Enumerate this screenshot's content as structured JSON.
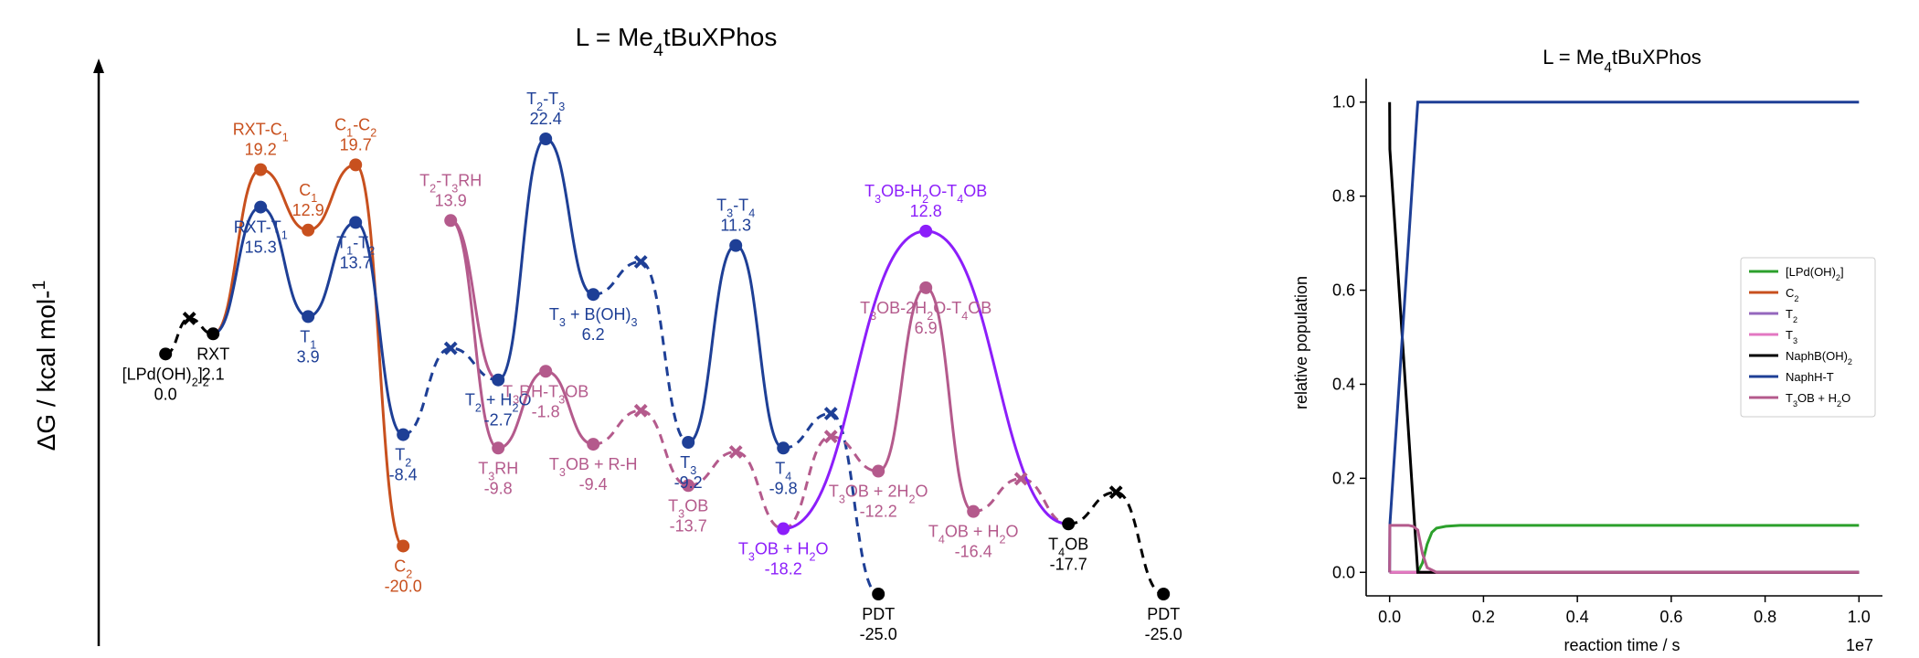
{
  "colors": {
    "orange": "#c8501e",
    "blue": "#1e3f96",
    "pink": "#b45a8c",
    "purple": "#8c1efa",
    "black": "#000000",
    "green": "#2ca02c",
    "lightpurple": "#9467bd",
    "lightpink": "#e377c2"
  },
  "chart_data": [
    {
      "type": "energy-profile",
      "title": "L = Me4tBuXPhos",
      "ylabel": "ΔG / kcal mol⁻¹",
      "ylim": [
        -25.0,
        22.4
      ],
      "xlim": [
        0,
        22.5
      ],
      "states": [
        {
          "id": "LPd",
          "label": "[LPd(OH)2]2",
          "value": 0.0,
          "x": 0.6,
          "color": "black",
          "kind": "min"
        },
        {
          "id": "X1",
          "label": "",
          "value": 3.7,
          "x": 1.1,
          "color": "black",
          "kind": "ts-cross"
        },
        {
          "id": "RXT",
          "label": "RXT",
          "value": 2.1,
          "x": 1.6,
          "color": "black",
          "kind": "min"
        },
        {
          "id": "RXT-C1",
          "label": "RXT-C1",
          "value": 19.2,
          "x": 2.6,
          "color": "orange",
          "kind": "min"
        },
        {
          "id": "C1",
          "label": "C1",
          "value": 12.9,
          "x": 3.6,
          "color": "orange",
          "kind": "min"
        },
        {
          "id": "C1-C2",
          "label": "C1-C2",
          "value": 19.7,
          "x": 4.6,
          "color": "orange",
          "kind": "min"
        },
        {
          "id": "C2",
          "label": "C2",
          "value": -20.0,
          "x": 5.6,
          "color": "orange",
          "kind": "min"
        },
        {
          "id": "RXT-T1",
          "label": "RXT-T1",
          "value": 15.3,
          "x": 2.6,
          "color": "blue",
          "kind": "min"
        },
        {
          "id": "T1",
          "label": "T1",
          "value": 3.9,
          "x": 3.6,
          "color": "blue",
          "kind": "min"
        },
        {
          "id": "T1-T2",
          "label": "T1-T2",
          "value": 13.7,
          "x": 4.6,
          "color": "blue",
          "kind": "min"
        },
        {
          "id": "T2",
          "label": "T2",
          "value": -8.4,
          "x": 5.6,
          "color": "blue",
          "kind": "min"
        },
        {
          "id": "X2",
          "label": "",
          "value": 0.6,
          "x": 6.6,
          "color": "blue",
          "kind": "ts-cross"
        },
        {
          "id": "T2H2O",
          "label": "T2 + H2O",
          "value": -2.7,
          "x": 7.6,
          "color": "blue",
          "kind": "min"
        },
        {
          "id": "T2-T3",
          "label": "T2-T3",
          "value": 22.4,
          "x": 8.6,
          "color": "blue",
          "kind": "min"
        },
        {
          "id": "T3BOH3",
          "label": "T3 + B(OH)3",
          "value": 6.2,
          "x": 9.6,
          "color": "blue",
          "kind": "min"
        },
        {
          "id": "X3",
          "label": "",
          "value": 9.6,
          "x": 10.6,
          "color": "blue",
          "kind": "ts-cross"
        },
        {
          "id": "T3",
          "label": "T3",
          "value": -9.2,
          "x": 11.6,
          "color": "blue",
          "kind": "min"
        },
        {
          "id": "T3-T4",
          "label": "T3-T4",
          "value": 11.3,
          "x": 12.6,
          "color": "blue",
          "kind": "min"
        },
        {
          "id": "T4",
          "label": "T4",
          "value": -9.8,
          "x": 13.6,
          "color": "blue",
          "kind": "min"
        },
        {
          "id": "X4",
          "label": "",
          "value": -6.2,
          "x": 14.6,
          "color": "blue",
          "kind": "ts-cross"
        },
        {
          "id": "PDT1",
          "label": "PDT",
          "value": -25.0,
          "x": 15.6,
          "color": "black",
          "kind": "min"
        },
        {
          "id": "T2-T3RH",
          "label": "T2-T3RH",
          "value": 13.9,
          "x": 6.6,
          "color": "pink",
          "kind": "min"
        },
        {
          "id": "T3RH",
          "label": "T3RH",
          "value": -9.8,
          "x": 7.6,
          "color": "pink",
          "kind": "min"
        },
        {
          "id": "T3RH-T3OB",
          "label": "T3RH-T3OB",
          "value": -1.8,
          "x": 8.6,
          "color": "pink",
          "kind": "min"
        },
        {
          "id": "T3OBRH",
          "label": "T3OB + R-H",
          "value": -9.4,
          "x": 9.6,
          "color": "pink",
          "kind": "min"
        },
        {
          "id": "X5",
          "label": "",
          "value": -5.9,
          "x": 10.6,
          "color": "pink",
          "kind": "ts-cross"
        },
        {
          "id": "T3OB",
          "label": "T3OB",
          "value": -13.7,
          "x": 11.6,
          "color": "pink",
          "kind": "min"
        },
        {
          "id": "X6",
          "label": "",
          "value": -10.2,
          "x": 12.6,
          "color": "pink",
          "kind": "ts-cross"
        },
        {
          "id": "T3OBH2O",
          "label": "T3OB + H2O",
          "value": -18.2,
          "x": 13.6,
          "color": "purple",
          "kind": "min"
        },
        {
          "id": "X7",
          "label": "",
          "value": -8.6,
          "x": 14.6,
          "color": "pink",
          "kind": "ts-cross"
        },
        {
          "id": "T3OB2H2O",
          "label": "T3OB + 2H2O",
          "value": -12.2,
          "x": 15.6,
          "color": "pink",
          "kind": "min"
        },
        {
          "id": "T3OB-2H2O-T4OB",
          "label": "T3OB-2H2O-T4OB",
          "value": 6.9,
          "x": 16.6,
          "color": "pink",
          "kind": "min"
        },
        {
          "id": "T4OBH2O",
          "label": "T4OB + H2O",
          "value": -16.4,
          "x": 17.6,
          "color": "pink",
          "kind": "min"
        },
        {
          "id": "X8",
          "label": "",
          "value": -13.0,
          "x": 18.6,
          "color": "pink",
          "kind": "ts-cross"
        },
        {
          "id": "T3OB-H2O-T4OB",
          "label": "T3OB-H2O-T4OB",
          "value": 12.8,
          "x": 16.6,
          "color": "purple",
          "kind": "min"
        },
        {
          "id": "T4OB",
          "label": "T4OB",
          "value": -17.7,
          "x": 19.6,
          "color": "black",
          "kind": "min"
        },
        {
          "id": "X9",
          "label": "",
          "value": -14.4,
          "x": 20.6,
          "color": "black",
          "kind": "ts-cross"
        },
        {
          "id": "PDT2",
          "label": "PDT",
          "value": -25.0,
          "x": 21.6,
          "color": "black",
          "kind": "min"
        }
      ],
      "segments": [
        {
          "from": "LPd",
          "to": "X1",
          "color": "black",
          "dashed": true
        },
        {
          "from": "X1",
          "to": "RXT",
          "color": "black",
          "dashed": true
        },
        {
          "path": [
            "RXT",
            "RXT-C1",
            "C1",
            "C1-C2",
            "C2"
          ],
          "color": "orange",
          "dashed": false
        },
        {
          "path": [
            "RXT",
            "RXT-T1",
            "T1",
            "T1-T2",
            "T2"
          ],
          "color": "blue",
          "dashed": false
        },
        {
          "path": [
            "T2",
            "X2",
            "T2H2O"
          ],
          "color": "blue",
          "dashed": true
        },
        {
          "path": [
            "T2H2O",
            "T2-T3",
            "T3BOH3"
          ],
          "color": "blue",
          "dashed": false
        },
        {
          "path": [
            "T3BOH3",
            "X3",
            "T3"
          ],
          "color": "blue",
          "dashed": true
        },
        {
          "path": [
            "T3",
            "T3-T4",
            "T4"
          ],
          "color": "blue",
          "dashed": false
        },
        {
          "path": [
            "T4",
            "X4",
            "PDT1"
          ],
          "color": "blue",
          "dashed": true
        },
        {
          "path": [
            "T2H2O",
            "T2-T3RH",
            "T3RH",
            "T3RH-T3OB",
            "T3OBRH"
          ],
          "color": "pink",
          "dashed": false
        },
        {
          "path": [
            "T3OBRH",
            "X5",
            "T3OB",
            "X6",
            "T3OBH2O"
          ],
          "color": "pink",
          "dashed": true
        },
        {
          "path": [
            "T3OBH2O",
            "X7",
            "T3OB2H2O"
          ],
          "color": "pink",
          "dashed": true
        },
        {
          "path": [
            "T3OB2H2O",
            "T3OB-2H2O-T4OB",
            "T4OBH2O"
          ],
          "color": "pink",
          "dashed": false
        },
        {
          "path": [
            "T4OBH2O",
            "X8",
            "T4OB"
          ],
          "color": "pink",
          "dashed": true
        },
        {
          "path": [
            "T3OBH2O",
            "T3OB-H2O-T4OB",
            "T4OB"
          ],
          "color": "purple",
          "dashed": false
        },
        {
          "path": [
            "T4OB",
            "X9",
            "PDT2"
          ],
          "color": "black",
          "dashed": true
        }
      ]
    },
    {
      "type": "line",
      "title": "L = Me4tBuXPhos",
      "xlabel": "reaction time / s",
      "ylabel": "relative population",
      "x_multiplier": "1e7",
      "xlim": [
        -0.05,
        1.05
      ],
      "ylim": [
        -0.05,
        1.05
      ],
      "xticks": [
        "0.0",
        "0.2",
        "0.4",
        "0.6",
        "0.8",
        "1.0"
      ],
      "yticks": [
        "0.0",
        "0.2",
        "0.4",
        "0.6",
        "0.8",
        "1.0"
      ],
      "legend_position": "center-right",
      "series": [
        {
          "name": "[LPd(OH)2]",
          "color": "green",
          "x": [
            0.0,
            0.06,
            0.07,
            0.08,
            0.09,
            0.1,
            0.12,
            0.15,
            0.2,
            0.4,
            0.6,
            0.8,
            1.0
          ],
          "y": [
            0.0,
            0.0,
            0.02,
            0.06,
            0.085,
            0.094,
            0.098,
            0.1,
            0.1,
            0.1,
            0.1,
            0.1,
            0.1
          ]
        },
        {
          "name": "C2",
          "color": "orange",
          "x": [
            0.0,
            1.0
          ],
          "y": [
            0.0,
            0.0
          ]
        },
        {
          "name": "T2",
          "color": "lightpurple",
          "x": [
            0.0,
            1.0
          ],
          "y": [
            0.0,
            0.0
          ]
        },
        {
          "name": "T3",
          "color": "lightpink",
          "x": [
            0.0,
            0.001,
            1.0
          ],
          "y": [
            0.0,
            0.0,
            0.0
          ]
        },
        {
          "name": "NaphB(OH)2",
          "color": "black",
          "x": [
            0.0,
            0.0,
            0.0005,
            0.06,
            0.07,
            1.0
          ],
          "y": [
            1.0,
            1.0,
            0.9,
            0.0,
            0.0,
            0.0
          ]
        },
        {
          "name": "NaphH-T",
          "color": "blue",
          "x": [
            0.0,
            0.0005,
            0.06,
            0.07,
            0.2,
            0.6,
            1.0
          ],
          "y": [
            0.0,
            0.1,
            1.0,
            1.0,
            1.0,
            1.0,
            1.0
          ]
        },
        {
          "name": "T3OB + H2O",
          "color": "pink",
          "x": [
            0.0,
            0.0005,
            0.04,
            0.05,
            0.06,
            0.07,
            0.08,
            0.1,
            0.2,
            1.0
          ],
          "y": [
            0.0,
            0.1,
            0.1,
            0.098,
            0.09,
            0.04,
            0.01,
            0.0,
            0.0,
            0.0
          ]
        }
      ]
    }
  ]
}
